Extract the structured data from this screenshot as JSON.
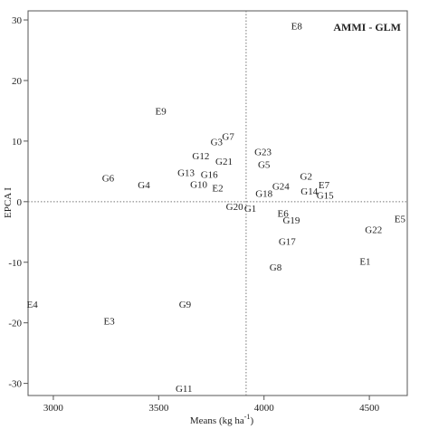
{
  "chart_data": {
    "type": "scatter",
    "title": "AMMI - GLM",
    "xlabel": "Means (kg ha",
    "xlabel_sup": "-1",
    "xlabel_close": ")",
    "ylabel": "EPCA I",
    "xlim": [
      2880,
      4680
    ],
    "ylim": [
      -32,
      31.5
    ],
    "xticks": [
      3000,
      3500,
      4000,
      4500
    ],
    "yticks": [
      -30,
      -20,
      -10,
      0,
      10,
      20,
      30
    ],
    "xtick_labels": [
      "3000",
      "3500",
      "4000",
      "4500"
    ],
    "ytick_labels": [
      "-30",
      "-20",
      "-10",
      "0",
      "10",
      "20",
      "30"
    ],
    "reference_lines": {
      "x": 3915,
      "y": 0,
      "style": "dotted"
    },
    "points": [
      {
        "label": "E8",
        "x": 4155,
        "y": 29
      },
      {
        "label": "E9",
        "x": 3510,
        "y": 15
      },
      {
        "label": "G7",
        "x": 3830,
        "y": 10.8
      },
      {
        "label": "G3",
        "x": 3775,
        "y": 9.9
      },
      {
        "label": "G23",
        "x": 3995,
        "y": 8.3
      },
      {
        "label": "G12",
        "x": 3700,
        "y": 7.6
      },
      {
        "label": "G21",
        "x": 3810,
        "y": 6.7
      },
      {
        "label": "G5",
        "x": 4000,
        "y": 6.2
      },
      {
        "label": "G13",
        "x": 3630,
        "y": 4.8
      },
      {
        "label": "G16",
        "x": 3740,
        "y": 4.5
      },
      {
        "label": "G2",
        "x": 4200,
        "y": 4.2
      },
      {
        "label": "G6",
        "x": 3260,
        "y": 3.9
      },
      {
        "label": "E7",
        "x": 4285,
        "y": 2.8
      },
      {
        "label": "G4",
        "x": 3430,
        "y": 2.8
      },
      {
        "label": "G10",
        "x": 3690,
        "y": 2.9
      },
      {
        "label": "G24",
        "x": 4080,
        "y": 2.6
      },
      {
        "label": "E2",
        "x": 3780,
        "y": 2.3
      },
      {
        "label": "G14",
        "x": 4215,
        "y": 1.8
      },
      {
        "label": "G18",
        "x": 4000,
        "y": 1.4
      },
      {
        "label": "G15",
        "x": 4290,
        "y": 1.1
      },
      {
        "label": "G20",
        "x": 3860,
        "y": -0.8
      },
      {
        "label": "G1",
        "x": 3935,
        "y": -1.1
      },
      {
        "label": "E6",
        "x": 4090,
        "y": -1.9
      },
      {
        "label": "G19",
        "x": 4130,
        "y": -3.0
      },
      {
        "label": "E5",
        "x": 4645,
        "y": -2.8
      },
      {
        "label": "G22",
        "x": 4520,
        "y": -4.6
      },
      {
        "label": "G17",
        "x": 4110,
        "y": -6.5
      },
      {
        "label": "E1",
        "x": 4480,
        "y": -9.8
      },
      {
        "label": "G8",
        "x": 4055,
        "y": -10.8
      },
      {
        "label": "E4",
        "x": 2900,
        "y": -16.9
      },
      {
        "label": "G9",
        "x": 3625,
        "y": -16.9
      },
      {
        "label": "E3",
        "x": 3265,
        "y": -19.7
      },
      {
        "label": "G11",
        "x": 3620,
        "y": -30.8
      }
    ]
  }
}
